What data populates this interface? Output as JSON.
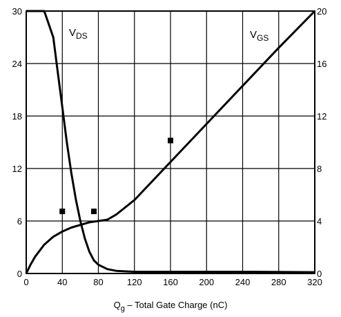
{
  "chart_data": {
    "type": "line",
    "xlabel_main": "Q",
    "xlabel_sub": "g",
    "xlabel_rest": " – Total Gate Charge (nC)",
    "xlim": [
      0,
      320
    ],
    "ylim_left": [
      0,
      30
    ],
    "ylim_right": [
      0,
      20
    ],
    "x_ticks": [
      "0",
      "40",
      "80",
      "120",
      "160",
      "200",
      "240",
      "280",
      "320"
    ],
    "y_ticks_left": [
      "0",
      "6",
      "12",
      "18",
      "24",
      "30"
    ],
    "y_ticks_right": [
      "0",
      "4",
      "8",
      "12",
      "16",
      "20"
    ],
    "grid": true,
    "series": [
      {
        "label_main": "V",
        "label_sub": "DS",
        "axis": "left",
        "points": [
          [
            0,
            30
          ],
          [
            20,
            30
          ],
          [
            30,
            27
          ],
          [
            35,
            23
          ],
          [
            40,
            19
          ],
          [
            45,
            15
          ],
          [
            50,
            11.5
          ],
          [
            55,
            8.5
          ],
          [
            60,
            6
          ],
          [
            65,
            4
          ],
          [
            70,
            2.5
          ],
          [
            75,
            1.5
          ],
          [
            80,
            1
          ],
          [
            90,
            0.5
          ],
          [
            100,
            0.3
          ],
          [
            120,
            0.2
          ],
          [
            160,
            0.2
          ],
          [
            240,
            0.2
          ],
          [
            320,
            0.15
          ]
        ]
      },
      {
        "label_main": "V",
        "label_sub": "GS",
        "axis": "right",
        "points": [
          [
            0,
            0
          ],
          [
            5,
            0.7
          ],
          [
            10,
            1.3
          ],
          [
            20,
            2.2
          ],
          [
            30,
            2.8
          ],
          [
            40,
            3.2
          ],
          [
            50,
            3.5
          ],
          [
            60,
            3.7
          ],
          [
            70,
            3.9
          ],
          [
            80,
            4.0
          ],
          [
            90,
            4.1
          ],
          [
            100,
            4.5
          ],
          [
            120,
            5.6
          ],
          [
            160,
            8.5
          ],
          [
            200,
            11.4
          ],
          [
            240,
            14.3
          ],
          [
            280,
            17.2
          ],
          [
            320,
            20
          ]
        ]
      }
    ],
    "markers": [
      [
        40,
        7.1
      ],
      [
        75,
        7.1
      ],
      [
        160,
        15.2
      ]
    ]
  }
}
